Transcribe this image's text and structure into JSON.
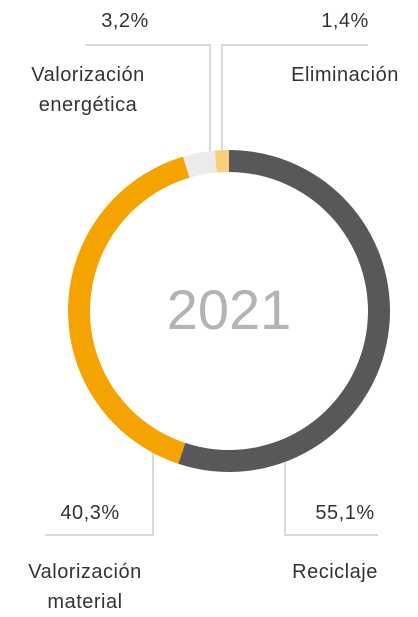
{
  "chart_data": {
    "type": "pie",
    "donut": true,
    "center_label": "2021",
    "categories": [
      "Reciclaje",
      "Valorización material",
      "Valorización energética",
      "Eliminación"
    ],
    "values": [
      55.1,
      40.3,
      3.2,
      1.4
    ],
    "value_labels": [
      "55,1%",
      "40,3%",
      "3,2%",
      "1,4%"
    ],
    "colors": [
      "#58585b",
      "#f4a300",
      "#ebebeb",
      "#f7d07c"
    ]
  }
}
